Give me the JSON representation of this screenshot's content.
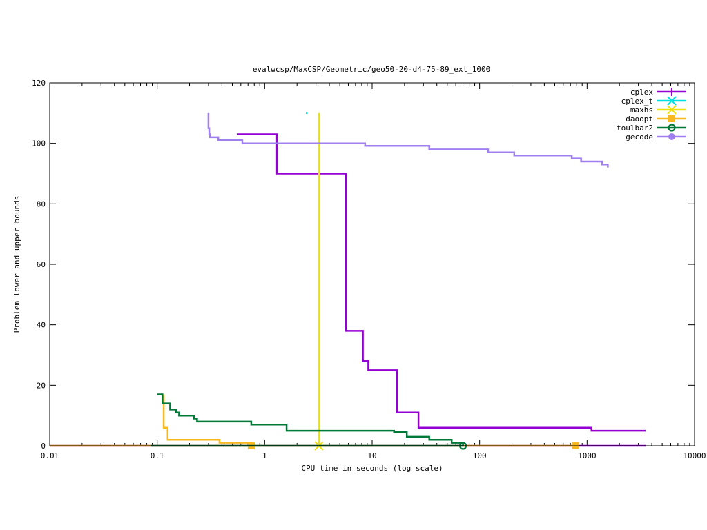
{
  "chart_data": {
    "type": "line",
    "title": "evalwcsp/MaxCSP/Geometric/geo50-20-d4-75-89_ext_1000",
    "xlabel": "CPU time in seconds (log scale)",
    "ylabel": "Problem lower and upper bounds",
    "xscale": "log",
    "xlim": [
      0.01,
      10000
    ],
    "ylim": [
      0,
      120
    ],
    "x_ticks": [
      0.01,
      0.1,
      1,
      10,
      100,
      1000,
      10000
    ],
    "x_tick_labels": [
      "0.01",
      "0.1",
      "1",
      "10",
      "100",
      "1000",
      "10000"
    ],
    "y_ticks": [
      0,
      20,
      40,
      60,
      80,
      100,
      120
    ],
    "y_tick_labels": [
      "0",
      "20",
      "40",
      "60",
      "80",
      "100",
      "120"
    ],
    "grid": false,
    "legend_position": "top-right",
    "series": [
      {
        "name": "cplex",
        "color": "#9400d3",
        "marker": "plus",
        "segments": [
          [
            [
              0.55,
              103
            ],
            [
              1.3,
              103
            ],
            [
              1.3,
              90
            ],
            [
              5.7,
              90
            ],
            [
              5.7,
              38
            ],
            [
              8.2,
              38
            ],
            [
              8.2,
              28
            ],
            [
              9.2,
              28
            ],
            [
              9.2,
              25
            ],
            [
              17,
              25
            ],
            [
              17,
              11
            ],
            [
              27,
              11
            ],
            [
              27,
              6
            ],
            [
              1100,
              6
            ],
            [
              1100,
              5
            ],
            [
              3500,
              5
            ]
          ],
          [
            [
              0.01,
              0
            ],
            [
              3500,
              0
            ]
          ]
        ],
        "markers": []
      },
      {
        "name": "cplex_t",
        "color": "#00e0e0",
        "marker": "x",
        "segments": [
          [
            [
              2.42,
              110
            ],
            [
              2.5,
              110
            ]
          ]
        ],
        "markers": []
      },
      {
        "name": "maxhs",
        "color": "#f0e010",
        "marker": "x",
        "segments": [
          [
            [
              3.2,
              110
            ],
            [
              3.2,
              0
            ]
          ]
        ],
        "markers": [
          [
            3.2,
            0
          ]
        ]
      },
      {
        "name": "daoopt",
        "color": "#f8b820",
        "marker": "square",
        "segments": [
          [
            [
              0.115,
              17
            ],
            [
              0.115,
              6
            ],
            [
              0.125,
              6
            ],
            [
              0.125,
              2
            ],
            [
              0.38,
              2
            ],
            [
              0.38,
              1
            ],
            [
              0.75,
              1
            ],
            [
              0.75,
              0
            ]
          ],
          [
            [
              0.01,
              0
            ],
            [
              800,
              0
            ]
          ]
        ],
        "markers": [
          [
            0.75,
            0
          ],
          [
            780,
            0
          ]
        ]
      },
      {
        "name": "toulbar2",
        "color": "#007838",
        "marker": "circle",
        "segments": [
          [
            [
              0.1,
              17
            ],
            [
              0.112,
              17
            ],
            [
              0.112,
              14
            ],
            [
              0.132,
              14
            ],
            [
              0.132,
              12
            ],
            [
              0.15,
              12
            ],
            [
              0.15,
              11
            ],
            [
              0.16,
              11
            ],
            [
              0.16,
              10
            ],
            [
              0.22,
              10
            ],
            [
              0.22,
              9
            ],
            [
              0.235,
              9
            ],
            [
              0.235,
              8
            ],
            [
              0.75,
              8
            ],
            [
              0.75,
              7
            ],
            [
              1.6,
              7
            ],
            [
              1.6,
              5
            ],
            [
              16,
              5
            ],
            [
              16,
              4.5
            ],
            [
              21,
              4.5
            ],
            [
              21,
              3
            ],
            [
              34,
              3
            ],
            [
              34,
              2
            ],
            [
              55,
              2
            ],
            [
              55,
              1
            ],
            [
              70,
              1
            ],
            [
              70,
              0
            ]
          ],
          [
            [
              0.087,
              0
            ],
            [
              70,
              0
            ]
          ]
        ],
        "markers": [
          [
            70,
            0
          ]
        ]
      },
      {
        "name": "gecode",
        "color": "#a080f0",
        "marker": "circle",
        "segments": [
          [
            [
              0.3,
              110
            ],
            [
              0.3,
              105
            ],
            [
              0.305,
              105
            ],
            [
              0.305,
              103
            ],
            [
              0.31,
              103
            ],
            [
              0.31,
              102
            ],
            [
              0.37,
              102
            ],
            [
              0.37,
              101
            ],
            [
              0.62,
              101
            ],
            [
              0.62,
              100
            ],
            [
              8.6,
              100
            ],
            [
              8.6,
              99.2
            ],
            [
              34,
              99.2
            ],
            [
              34,
              98
            ],
            [
              120,
              98
            ],
            [
              120,
              97
            ],
            [
              210,
              97
            ],
            [
              210,
              96
            ],
            [
              720,
              96
            ],
            [
              720,
              95
            ],
            [
              880,
              95
            ],
            [
              880,
              94
            ],
            [
              1380,
              94
            ],
            [
              1380,
              93
            ],
            [
              1560,
              93
            ],
            [
              1560,
              92
            ]
          ]
        ],
        "markers": []
      }
    ]
  }
}
